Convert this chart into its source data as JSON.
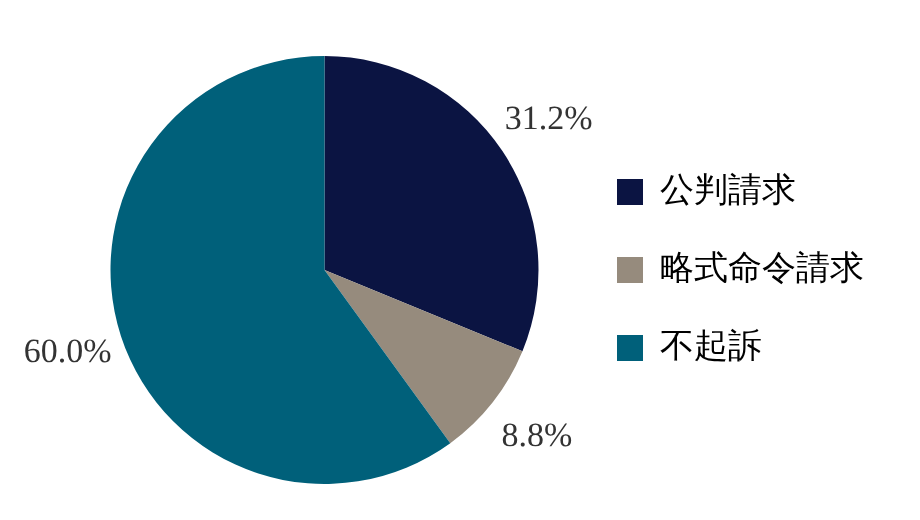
{
  "chart_data": {
    "type": "pie",
    "categories": [
      "公判請求",
      "略式命令請求",
      "不起訴"
    ],
    "values": [
      31.2,
      8.8,
      60.0
    ],
    "colors": [
      "#0b1442",
      "#968b7d",
      "#00607a"
    ],
    "value_labels": [
      "31.2%",
      "8.8%",
      "60.0%"
    ],
    "legend": "right"
  }
}
